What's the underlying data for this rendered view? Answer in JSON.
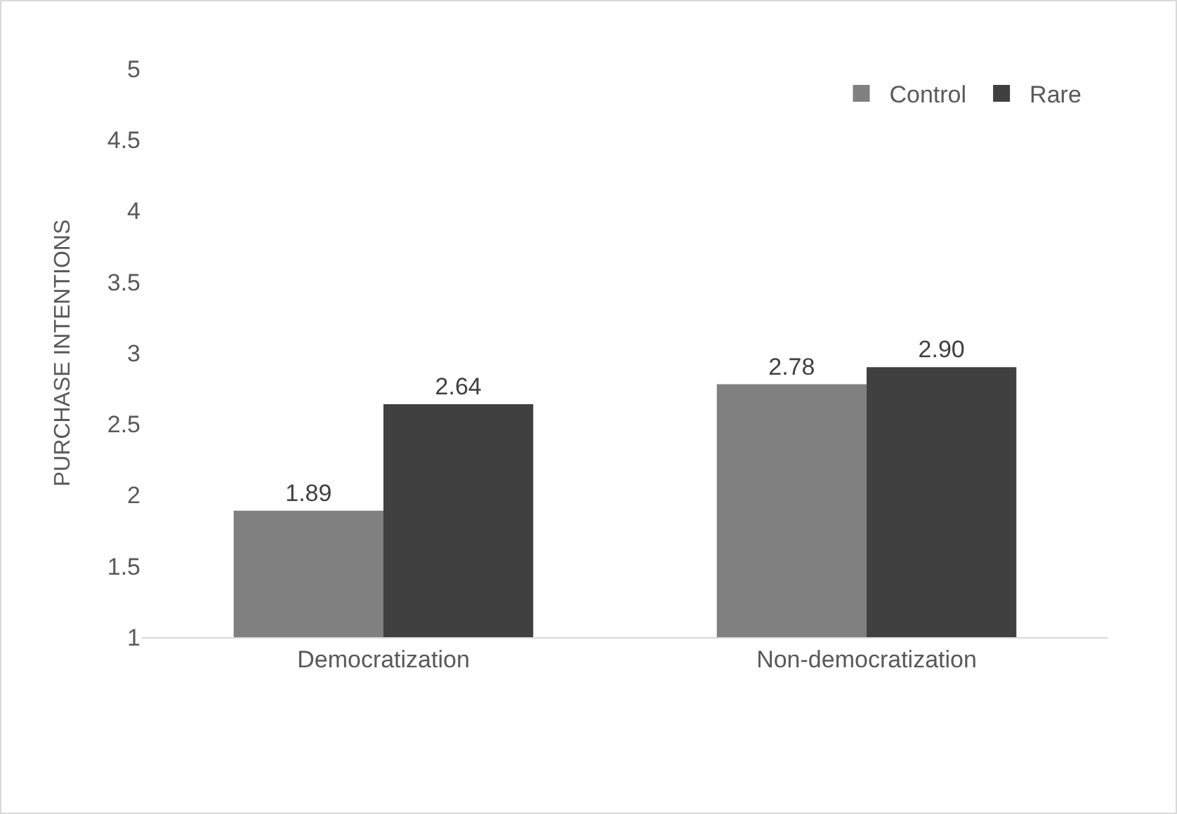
{
  "chart_data": {
    "type": "bar",
    "ylabel": "PURCHASE INTENTIONS",
    "categories": [
      "Democratization",
      "Non-democratization"
    ],
    "series": [
      {
        "name": "Control",
        "color": "#808080",
        "values": [
          1.89,
          2.78
        ],
        "value_labels": [
          "1.89",
          "2.78"
        ]
      },
      {
        "name": "Rare",
        "color": "#404040",
        "values": [
          2.64,
          2.9
        ],
        "value_labels": [
          "2.64",
          "2.90"
        ]
      }
    ],
    "ylim": [
      1,
      5
    ],
    "yticks": [
      1,
      1.5,
      2,
      2.5,
      3,
      3.5,
      4,
      4.5,
      5
    ],
    "grid": false,
    "legend": "top right"
  }
}
